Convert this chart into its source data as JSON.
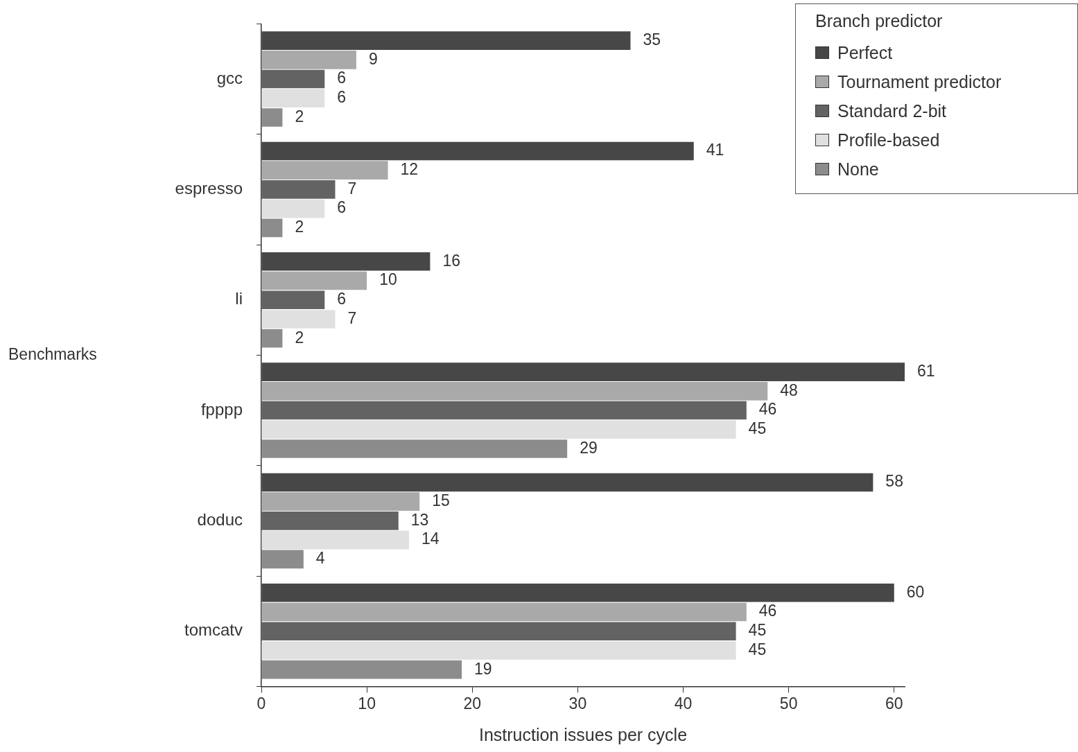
{
  "chart_data": {
    "type": "bar",
    "orientation": "horizontal",
    "xlabel": "Instruction issues per cycle",
    "ylabel": "Benchmarks",
    "legend_title": "Branch predictor",
    "categories": [
      "gcc",
      "espresso",
      "li",
      "fpppp",
      "doduc",
      "tomcatv"
    ],
    "series": [
      {
        "name": "Perfect",
        "color": "#474747",
        "values": [
          35,
          41,
          16,
          61,
          58,
          60
        ]
      },
      {
        "name": "Tournament predictor",
        "color": "#a9a9a9",
        "values": [
          9,
          12,
          10,
          48,
          15,
          46
        ]
      },
      {
        "name": "Standard 2-bit",
        "color": "#636363",
        "values": [
          6,
          7,
          6,
          46,
          13,
          45
        ]
      },
      {
        "name": "Profile-based",
        "color": "#e0e0e0",
        "values": [
          6,
          6,
          7,
          45,
          14,
          45
        ]
      },
      {
        "name": "None",
        "color": "#8c8c8c",
        "values": [
          2,
          2,
          2,
          29,
          4,
          19
        ]
      }
    ],
    "xlim": [
      0,
      61
    ],
    "xticks": [
      0,
      10,
      20,
      30,
      40,
      50,
      60
    ],
    "grid": false,
    "legend": "top right",
    "data_labels": true
  }
}
